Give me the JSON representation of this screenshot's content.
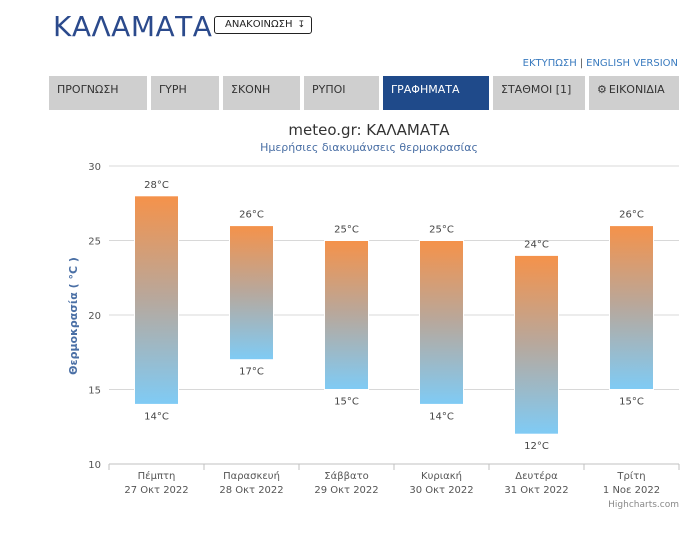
{
  "header": {
    "title": "ΚΑΛΑΜΑΤΑ",
    "announce_label": "ΑΝΑΚΟΙΝΩΣΗ",
    "announce_icon": "down-arrow-icon ↧"
  },
  "toplinks": {
    "print": "ΕΚΤΥΠΩΣΗ",
    "separator": "|",
    "english": "ENGLISH VERSION"
  },
  "tabs": [
    {
      "label": "ΠΡΟΓΝΩΣΗ",
      "active": false
    },
    {
      "label": "ΓΥΡΗ",
      "active": false
    },
    {
      "label": "ΣΚΟΝΗ",
      "active": false
    },
    {
      "label": "ΡΥΠΟΙ",
      "active": false
    },
    {
      "label": "ΓΡΑΦΗΜΑΤΑ",
      "active": true
    },
    {
      "label": "ΣΤΑΘΜΟΙ [1]",
      "active": false
    },
    {
      "label": "ΕΙΚΟΝΙΔΙΑ",
      "active": false,
      "icon": "gear-icon"
    }
  ],
  "colors": {
    "accent": "#1f4a8a",
    "tab_bg": "#cfcfcf",
    "bar_top": "#f5924a",
    "bar_bottom": "#7fcbf5"
  },
  "chart_data": {
    "type": "bar",
    "subtype": "columnrange",
    "title": "meteo.gr: ΚΑΛΑΜΑΤΑ",
    "subtitle": "Ημερήσιες διακυμάνσεις θερμοκρασίας",
    "ylabel": "Θερμοκρασία ( °C )",
    "ylim": [
      10,
      30
    ],
    "yticks": [
      "10",
      "15",
      "20",
      "25",
      "30"
    ],
    "grid": true,
    "categories": [
      {
        "day": "Πέμπτη",
        "date": "27 Οκτ 2022"
      },
      {
        "day": "Παρασκευή",
        "date": "28 Οκτ 2022"
      },
      {
        "day": "Σάββατο",
        "date": "29 Οκτ 2022"
      },
      {
        "day": "Κυριακή",
        "date": "30 Οκτ 2022"
      },
      {
        "day": "Δευτέρα",
        "date": "31 Οκτ 2022"
      },
      {
        "day": "Τρίτη",
        "date": "1 Νοε 2022"
      }
    ],
    "min": [
      14,
      17,
      15,
      14,
      12,
      15
    ],
    "max": [
      28,
      26,
      25,
      25,
      24,
      26
    ],
    "min_labels": [
      "14°C",
      "17°C",
      "15°C",
      "14°C",
      "12°C",
      "15°C"
    ],
    "max_labels": [
      "28°C",
      "26°C",
      "25°C",
      "25°C",
      "24°C",
      "26°C"
    ],
    "credit": "Highcharts.com"
  }
}
